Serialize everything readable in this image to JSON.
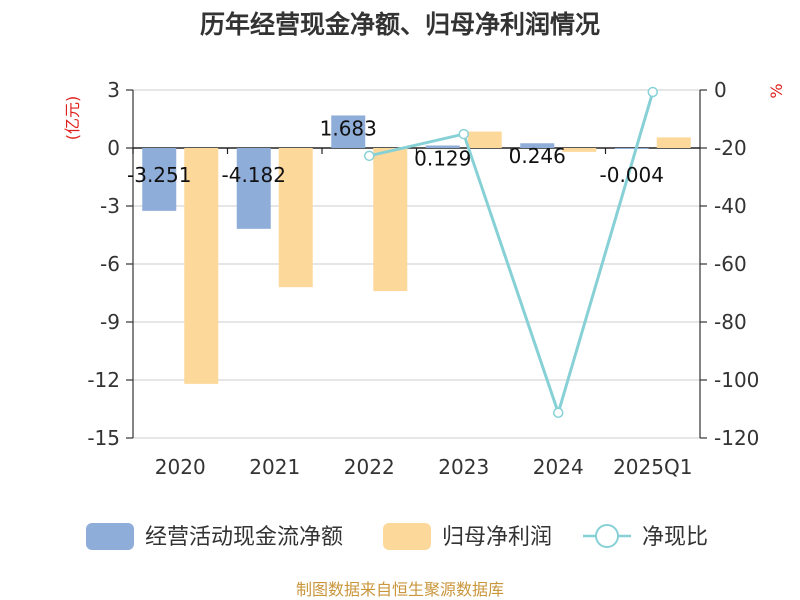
{
  "title": "历年经营现金净额、归母净利润情况",
  "left_axis_unit": "(亿元)",
  "right_axis_unit": "%",
  "source": "制图数据来自恒生聚源数据库",
  "colors": {
    "cash_flow": "#8fadd9",
    "net_profit": "#fdd89b",
    "ratio": "#87d1d6",
    "axis_unit": "#e0201b",
    "source": "#c9963c"
  },
  "legend": [
    {
      "label": "经营活动现金流净额",
      "kind": "bar",
      "color": "#8fadd9"
    },
    {
      "label": "归母净利润",
      "kind": "bar",
      "color": "#fdd89b"
    },
    {
      "label": "净现比",
      "kind": "line",
      "color": "#87d1d6"
    }
  ],
  "chart_data": {
    "type": "bar",
    "title": "历年经营现金净额、归母净利润情况",
    "categories": [
      "2020",
      "2021",
      "2022",
      "2023",
      "2024",
      "2025Q1"
    ],
    "left_axis": {
      "label": "(亿元)",
      "ylim": [
        -15,
        3
      ],
      "ticks": [
        3,
        0,
        -3,
        -6,
        -9,
        -12,
        -15
      ]
    },
    "right_axis": {
      "label": "%",
      "ylim": [
        -120,
        0
      ],
      "ticks": [
        0,
        -20,
        -40,
        -60,
        -80,
        -100,
        -120
      ]
    },
    "series": [
      {
        "name": "经营活动现金流净额",
        "type": "bar",
        "axis": "left",
        "values": [
          -3.251,
          -4.182,
          1.683,
          0.129,
          0.246,
          -0.004
        ],
        "labels": [
          "-3.251",
          "-4.182",
          "1.683",
          "0.129",
          "0.246",
          "-0.004"
        ]
      },
      {
        "name": "归母净利润",
        "type": "bar",
        "axis": "left",
        "values": [
          -12.2,
          -7.2,
          -7.4,
          0.85,
          -0.2,
          0.55
        ]
      },
      {
        "name": "净现比",
        "type": "line",
        "axis": "right",
        "values": [
          null,
          null,
          -22.7,
          -15.2,
          -111.3,
          -0.7
        ]
      }
    ],
    "grid": true,
    "legend_position": "bottom"
  }
}
